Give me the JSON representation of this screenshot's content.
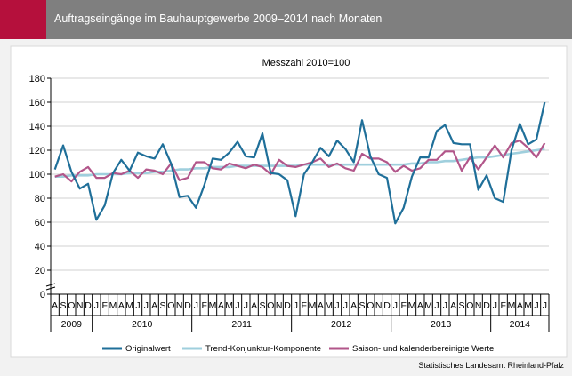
{
  "header": {
    "title": "Auftragseingänge im Bauhauptgewerbe 2009–2014 nach Monaten"
  },
  "source": "Statistisches Landesamt Rheinland-Pfalz",
  "colors": {
    "header_bg": "#7f7f7f",
    "accent": "#b5103c",
    "original": "#1f6f99",
    "trend": "#9fcfdd",
    "adjusted": "#b2568a"
  },
  "chart_data": {
    "type": "line",
    "title": "Messzahl 2010=100",
    "ylim": [
      0,
      180
    ],
    "yticks": [
      0,
      20,
      40,
      60,
      80,
      100,
      120,
      140,
      160,
      180
    ],
    "grid": true,
    "legend_position": "bottom",
    "months": [
      "A",
      "S",
      "O",
      "N",
      "D",
      "J",
      "F",
      "M",
      "A",
      "M",
      "J",
      "J",
      "A",
      "S",
      "O",
      "N",
      "D",
      "J",
      "F",
      "M",
      "A",
      "M",
      "J",
      "J",
      "A",
      "S",
      "O",
      "N",
      "D",
      "J",
      "F",
      "M",
      "A",
      "M",
      "J",
      "J",
      "A",
      "S",
      "O",
      "N",
      "D",
      "J",
      "F",
      "M",
      "A",
      "M",
      "J",
      "J",
      "A",
      "S",
      "O",
      "N",
      "D",
      "J",
      "F",
      "M",
      "A",
      "M",
      "J",
      "J"
    ],
    "years": [
      {
        "label": "2009",
        "start": 0,
        "count": 5
      },
      {
        "label": "2010",
        "start": 5,
        "count": 12
      },
      {
        "label": "2011",
        "start": 17,
        "count": 12
      },
      {
        "label": "2012",
        "start": 29,
        "count": 12
      },
      {
        "label": "2013",
        "start": 41,
        "count": 12
      },
      {
        "label": "2014",
        "start": 53,
        "count": 7
      }
    ],
    "series": [
      {
        "name": "Originalwert",
        "values": [
          104,
          124,
          102,
          88,
          92,
          62,
          74,
          101,
          112,
          103,
          118,
          115,
          113,
          125,
          109,
          81,
          82,
          72,
          91,
          113,
          112,
          118,
          127,
          115,
          114,
          134,
          101,
          100,
          95,
          65,
          100,
          110,
          122,
          115,
          128,
          121,
          110,
          145,
          115,
          100,
          97,
          59,
          72,
          98,
          114,
          114,
          136,
          141,
          126,
          125,
          125,
          87,
          99,
          80,
          77,
          120,
          142,
          125,
          129,
          160
        ]
      },
      {
        "name": "Trend-Konjunktur-Komponente",
        "values": [
          98,
          98,
          99,
          99,
          99,
          100,
          100,
          100,
          100,
          101,
          101,
          101,
          102,
          102,
          103,
          104,
          104,
          105,
          105,
          106,
          106,
          106,
          107,
          107,
          107,
          107,
          107,
          107,
          107,
          107,
          108,
          108,
          108,
          108,
          108,
          108,
          108,
          108,
          108,
          108,
          108,
          108,
          108,
          109,
          109,
          110,
          110,
          111,
          111,
          112,
          113,
          114,
          114,
          115,
          116,
          117,
          118,
          119,
          120,
          121
        ]
      },
      {
        "name": "Saison- und kalenderbereinigte Werte",
        "values": [
          98,
          100,
          94,
          102,
          106,
          97,
          97,
          101,
          100,
          103,
          97,
          104,
          103,
          100,
          109,
          95,
          97,
          110,
          110,
          105,
          104,
          109,
          107,
          105,
          108,
          106,
          100,
          112,
          107,
          106,
          108,
          110,
          113,
          106,
          109,
          105,
          103,
          117,
          113,
          113,
          110,
          102,
          107,
          103,
          105,
          112,
          112,
          119,
          119,
          103,
          114,
          104,
          114,
          124,
          114,
          126,
          128,
          122,
          114,
          126
        ]
      }
    ]
  }
}
